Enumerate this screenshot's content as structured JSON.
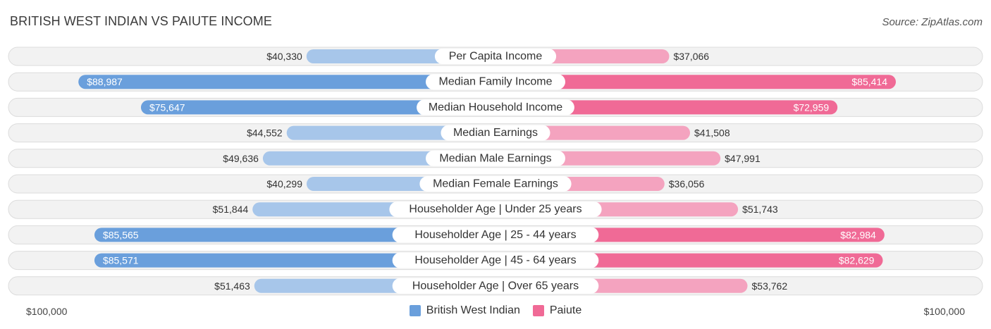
{
  "title": "BRITISH WEST INDIAN VS PAIUTE INCOME",
  "source": "Source: ZipAtlas.com",
  "legend": {
    "left": {
      "label": "British West Indian",
      "color": "#6a9fdc"
    },
    "right": {
      "label": "Paiute",
      "color": "#f06a96"
    }
  },
  "axis": {
    "left_label": "$100,000",
    "right_label": "$100,000"
  },
  "chart_data": {
    "type": "bar",
    "orientation": "horizontal-diverging",
    "max_value": 100000,
    "categories": [
      "Per Capita Income",
      "Median Family Income",
      "Median Household Income",
      "Median Earnings",
      "Median Male Earnings",
      "Median Female Earnings",
      "Householder Age | Under 25 years",
      "Householder Age | 25 - 44 years",
      "Householder Age | 45 - 64 years",
      "Householder Age | Over 65 years"
    ],
    "series": [
      {
        "name": "British West Indian",
        "values": [
          40330,
          88987,
          75647,
          44552,
          49636,
          40299,
          51844,
          85565,
          85571,
          51463
        ],
        "labels": [
          "$40,330",
          "$88,987",
          "$75,647",
          "$44,552",
          "$49,636",
          "$40,299",
          "$51,844",
          "$85,565",
          "$85,571",
          "$51,463"
        ]
      },
      {
        "name": "Paiute",
        "values": [
          37066,
          85414,
          72959,
          41508,
          47991,
          36056,
          51743,
          82984,
          82629,
          53762
        ],
        "labels": [
          "$37,066",
          "$85,414",
          "$72,959",
          "$41,508",
          "$47,991",
          "$36,056",
          "$51,743",
          "$82,984",
          "$82,629",
          "$53,762"
        ]
      }
    ],
    "colors": {
      "left_strong": "#6a9fdc",
      "left_light": "#a7c6ea",
      "right_strong": "#f06a96",
      "right_light": "#f4a3bf"
    }
  }
}
